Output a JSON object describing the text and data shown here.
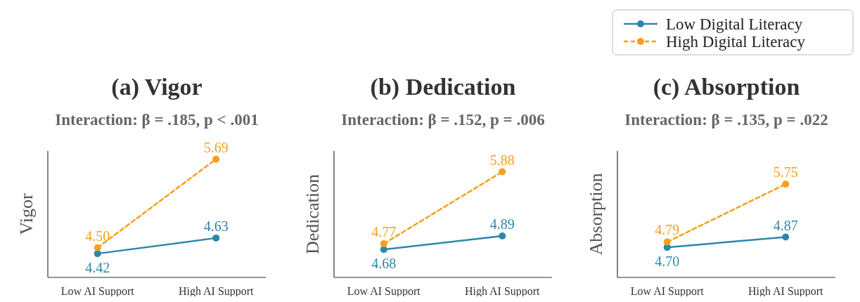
{
  "chart_data": [
    {
      "type": "line",
      "title": "(a) Vigor",
      "subtitle": "Interaction: β = .185, p < .001",
      "ylabel": "Vigor",
      "categories": [
        "Low AI Support",
        "High AI Support"
      ],
      "ylim": [
        4.1,
        5.8
      ],
      "marker": "circle",
      "legend": "top right",
      "tick_labels": "x",
      "series": [
        {
          "name": "Low Digital Literacy",
          "color": "#2e86ab",
          "values": [
            4.42,
            4.63
          ],
          "value_labels": [
            "4.42",
            "4.63"
          ],
          "line_style": "solid"
        },
        {
          "name": "High Digital Literacy",
          "color": "#f7a01c",
          "values": [
            4.5,
            5.69
          ],
          "value_labels": [
            "4.50",
            "5.69"
          ],
          "line_style": "dashed"
        }
      ]
    },
    {
      "type": "line",
      "title": "(b) Dedication",
      "subtitle": "Interaction: β = .152, p = .006",
      "ylabel": "Dedication",
      "categories": [
        "Low AI Support",
        "High AI Support"
      ],
      "ylim": [
        4.25,
        6.2
      ],
      "marker": "circle",
      "tick_labels": "x",
      "series": [
        {
          "color": "#2e86ab",
          "values": [
            4.68,
            4.89
          ],
          "value_labels": [
            "4.68",
            "4.89"
          ],
          "line_style": "solid"
        },
        {
          "color": "#f7a01c",
          "values": [
            4.77,
            5.88
          ],
          "value_labels": [
            "4.77",
            "5.88"
          ],
          "line_style": "dashed"
        }
      ]
    },
    {
      "type": "line",
      "title": "(c) Absorption",
      "subtitle": "Interaction: β = .135, p = .022",
      "ylabel": "Absorption",
      "categories": [
        "Low AI Support",
        "High AI Support"
      ],
      "ylim": [
        4.2,
        6.3
      ],
      "marker": "circle",
      "tick_labels": "x",
      "series": [
        {
          "color": "#2e86ab",
          "values": [
            4.7,
            4.87
          ],
          "value_labels": [
            "4.70",
            "4.87"
          ],
          "line_style": "solid"
        },
        {
          "color": "#f7a01c",
          "values": [
            4.79,
            5.75
          ],
          "value_labels": [
            "4.79",
            "5.75"
          ],
          "line_style": "dashed"
        }
      ]
    }
  ]
}
